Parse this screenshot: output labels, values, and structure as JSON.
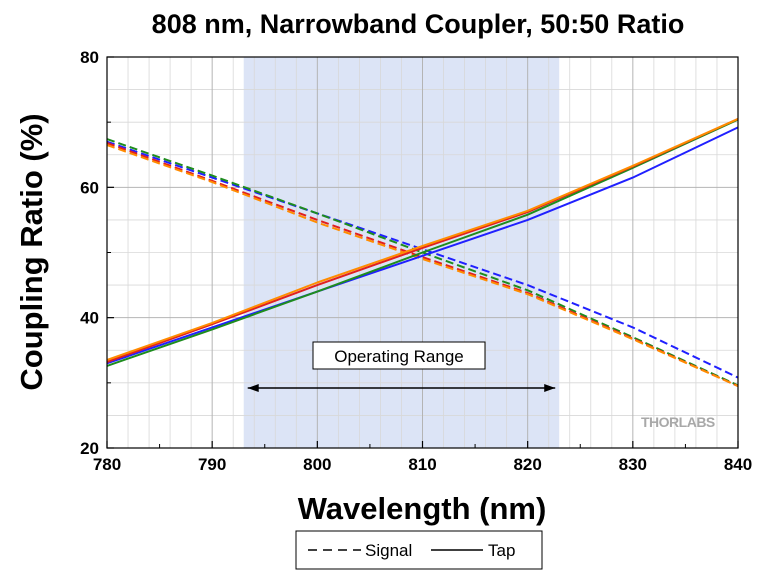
{
  "chart_data": {
    "type": "line",
    "title": "808 nm, Narrowband Coupler, 50:50 Ratio",
    "xlabel": "Wavelength (nm)",
    "ylabel": "Coupling Ratio (%)",
    "xlim": [
      780,
      840
    ],
    "ylim": [
      20,
      80
    ],
    "xticks": [
      780,
      790,
      800,
      810,
      820,
      830,
      840
    ],
    "yticks": [
      20,
      40,
      60,
      80
    ],
    "grid": true,
    "operating_range": {
      "label": "Operating Range",
      "x_start": 793,
      "x_end": 823,
      "shade_color": "#dce4f6"
    },
    "legend": {
      "placement": "bottom-center",
      "entries": [
        {
          "label": "Signal",
          "style": "dashed"
        },
        {
          "label": "Tap",
          "style": "solid"
        }
      ]
    },
    "watermark": "THORLABS",
    "series": [
      {
        "kind": "Signal",
        "color": "#2020ff",
        "x": [
          780,
          790,
          800,
          810,
          820,
          830,
          840
        ],
        "y": [
          67.0,
          61.5,
          56.0,
          50.5,
          45.0,
          38.5,
          30.8
        ]
      },
      {
        "kind": "Signal",
        "color": "#1e8c1e",
        "x": [
          780,
          790,
          800,
          810,
          820,
          830,
          840
        ],
        "y": [
          67.4,
          61.8,
          56.0,
          50.0,
          44.2,
          37.0,
          29.6
        ]
      },
      {
        "kind": "Signal",
        "color": "#e02020",
        "x": [
          780,
          790,
          800,
          810,
          820,
          830,
          840
        ],
        "y": [
          66.8,
          61.0,
          55.0,
          49.3,
          43.8,
          36.8,
          29.5
        ]
      },
      {
        "kind": "Signal",
        "color": "#ff8c00",
        "x": [
          780,
          790,
          800,
          810,
          820,
          830,
          840
        ],
        "y": [
          66.5,
          60.8,
          54.6,
          49.0,
          43.6,
          36.7,
          29.5
        ]
      },
      {
        "kind": "Tap",
        "color": "#2020ff",
        "x": [
          780,
          790,
          800,
          810,
          820,
          830,
          840
        ],
        "y": [
          33.0,
          38.5,
          44.0,
          49.5,
          55.0,
          61.5,
          69.2
        ]
      },
      {
        "kind": "Tap",
        "color": "#1e8c1e",
        "x": [
          780,
          790,
          800,
          810,
          820,
          830,
          840
        ],
        "y": [
          32.6,
          38.2,
          44.0,
          50.0,
          55.8,
          63.0,
          70.4
        ]
      },
      {
        "kind": "Tap",
        "color": "#e02020",
        "x": [
          780,
          790,
          800,
          810,
          820,
          830,
          840
        ],
        "y": [
          33.2,
          39.0,
          45.0,
          50.7,
          56.2,
          63.2,
          70.5
        ]
      },
      {
        "kind": "Tap",
        "color": "#ff8c00",
        "x": [
          780,
          790,
          800,
          810,
          820,
          830,
          840
        ],
        "y": [
          33.5,
          39.2,
          45.4,
          51.0,
          56.4,
          63.3,
          70.5
        ]
      }
    ]
  }
}
